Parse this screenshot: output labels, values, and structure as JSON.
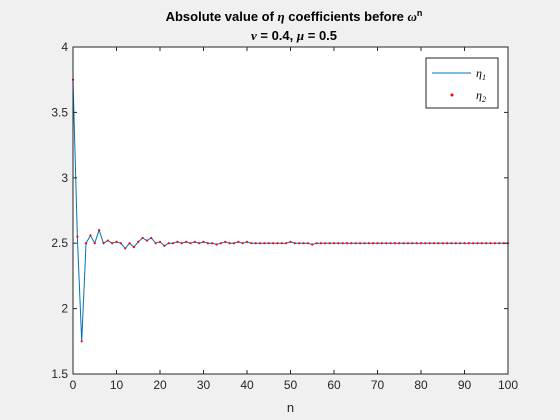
{
  "chart_data": {
    "type": "line",
    "title": {
      "pre": "Absolute value of ",
      "sym": "η",
      "mid": " coefficients before ",
      "sym2": "ω",
      "sup": "n"
    },
    "subtitle": {
      "sym1": "ν",
      "part1": " = 0.4, ",
      "sym2": "μ",
      "part2": " = 0.5"
    },
    "xlabel": "n",
    "ylabel": "",
    "xlim": [
      0,
      100
    ],
    "ylim": [
      1.5,
      4
    ],
    "xticks": [
      0,
      10,
      20,
      30,
      40,
      50,
      60,
      70,
      80,
      90,
      100
    ],
    "yticks": [
      1.5,
      2,
      2.5,
      3,
      3.5,
      4
    ],
    "ytick_labels": [
      "1.5",
      "2",
      "2.5",
      "3",
      "3.5",
      "4"
    ],
    "grid": false,
    "legend_position": "top-right",
    "x": [
      0,
      1,
      2,
      3,
      4,
      5,
      6,
      7,
      8,
      9,
      10,
      11,
      12,
      13,
      14,
      15,
      16,
      17,
      18,
      19,
      20,
      21,
      22,
      23,
      24,
      25,
      26,
      27,
      28,
      29,
      30,
      31,
      32,
      33,
      34,
      35,
      36,
      37,
      38,
      39,
      40,
      41,
      42,
      43,
      44,
      45,
      46,
      47,
      48,
      49,
      50,
      51,
      52,
      53,
      54,
      55,
      56,
      57,
      58,
      59,
      60,
      61,
      62,
      63,
      64,
      65,
      66,
      67,
      68,
      69,
      70,
      71,
      72,
      73,
      74,
      75,
      76,
      77,
      78,
      79,
      80,
      81,
      82,
      83,
      84,
      85,
      86,
      87,
      88,
      89,
      90,
      91,
      92,
      93,
      94,
      95,
      96,
      97,
      98,
      99,
      100
    ],
    "series": [
      {
        "name": "η",
        "sub": "1",
        "style": "line",
        "color": "#0072BD",
        "values": [
          3.75,
          2.55,
          1.75,
          2.5,
          2.56,
          2.5,
          2.6,
          2.5,
          2.52,
          2.5,
          2.51,
          2.5,
          2.46,
          2.5,
          2.47,
          2.51,
          2.54,
          2.52,
          2.54,
          2.5,
          2.51,
          2.48,
          2.5,
          2.5,
          2.51,
          2.5,
          2.51,
          2.5,
          2.51,
          2.5,
          2.51,
          2.5,
          2.5,
          2.49,
          2.5,
          2.51,
          2.5,
          2.5,
          2.51,
          2.5,
          2.51,
          2.5,
          2.5,
          2.5,
          2.5,
          2.5,
          2.5,
          2.5,
          2.5,
          2.5,
          2.51,
          2.5,
          2.5,
          2.5,
          2.5,
          2.49,
          2.5,
          2.5,
          2.5,
          2.5,
          2.5,
          2.5,
          2.5,
          2.5,
          2.5,
          2.5,
          2.5,
          2.5,
          2.5,
          2.5,
          2.5,
          2.5,
          2.5,
          2.5,
          2.5,
          2.5,
          2.5,
          2.5,
          2.5,
          2.5,
          2.5,
          2.5,
          2.5,
          2.5,
          2.5,
          2.5,
          2.5,
          2.5,
          2.5,
          2.5,
          2.5,
          2.5,
          2.5,
          2.5,
          2.5,
          2.5,
          2.5,
          2.5,
          2.5,
          2.5,
          2.5
        ]
      },
      {
        "name": "η",
        "sub": "2",
        "style": "dots",
        "color": "#FF0000",
        "values": [
          3.75,
          2.55,
          1.75,
          2.5,
          2.56,
          2.5,
          2.6,
          2.5,
          2.52,
          2.5,
          2.51,
          2.5,
          2.46,
          2.5,
          2.47,
          2.51,
          2.54,
          2.52,
          2.54,
          2.5,
          2.51,
          2.48,
          2.5,
          2.5,
          2.51,
          2.5,
          2.51,
          2.5,
          2.51,
          2.5,
          2.51,
          2.5,
          2.5,
          2.49,
          2.5,
          2.51,
          2.5,
          2.5,
          2.51,
          2.5,
          2.51,
          2.5,
          2.5,
          2.5,
          2.5,
          2.5,
          2.5,
          2.5,
          2.5,
          2.5,
          2.51,
          2.5,
          2.5,
          2.5,
          2.5,
          2.49,
          2.5,
          2.5,
          2.5,
          2.5,
          2.5,
          2.5,
          2.5,
          2.5,
          2.5,
          2.5,
          2.5,
          2.5,
          2.5,
          2.5,
          2.5,
          2.5,
          2.5,
          2.5,
          2.5,
          2.5,
          2.5,
          2.5,
          2.5,
          2.5,
          2.5,
          2.5,
          2.5,
          2.5,
          2.5,
          2.5,
          2.5,
          2.5,
          2.5,
          2.5,
          2.5,
          2.5,
          2.5,
          2.5,
          2.5,
          2.5,
          2.5,
          2.5,
          2.5,
          2.5,
          2.5
        ]
      }
    ]
  }
}
